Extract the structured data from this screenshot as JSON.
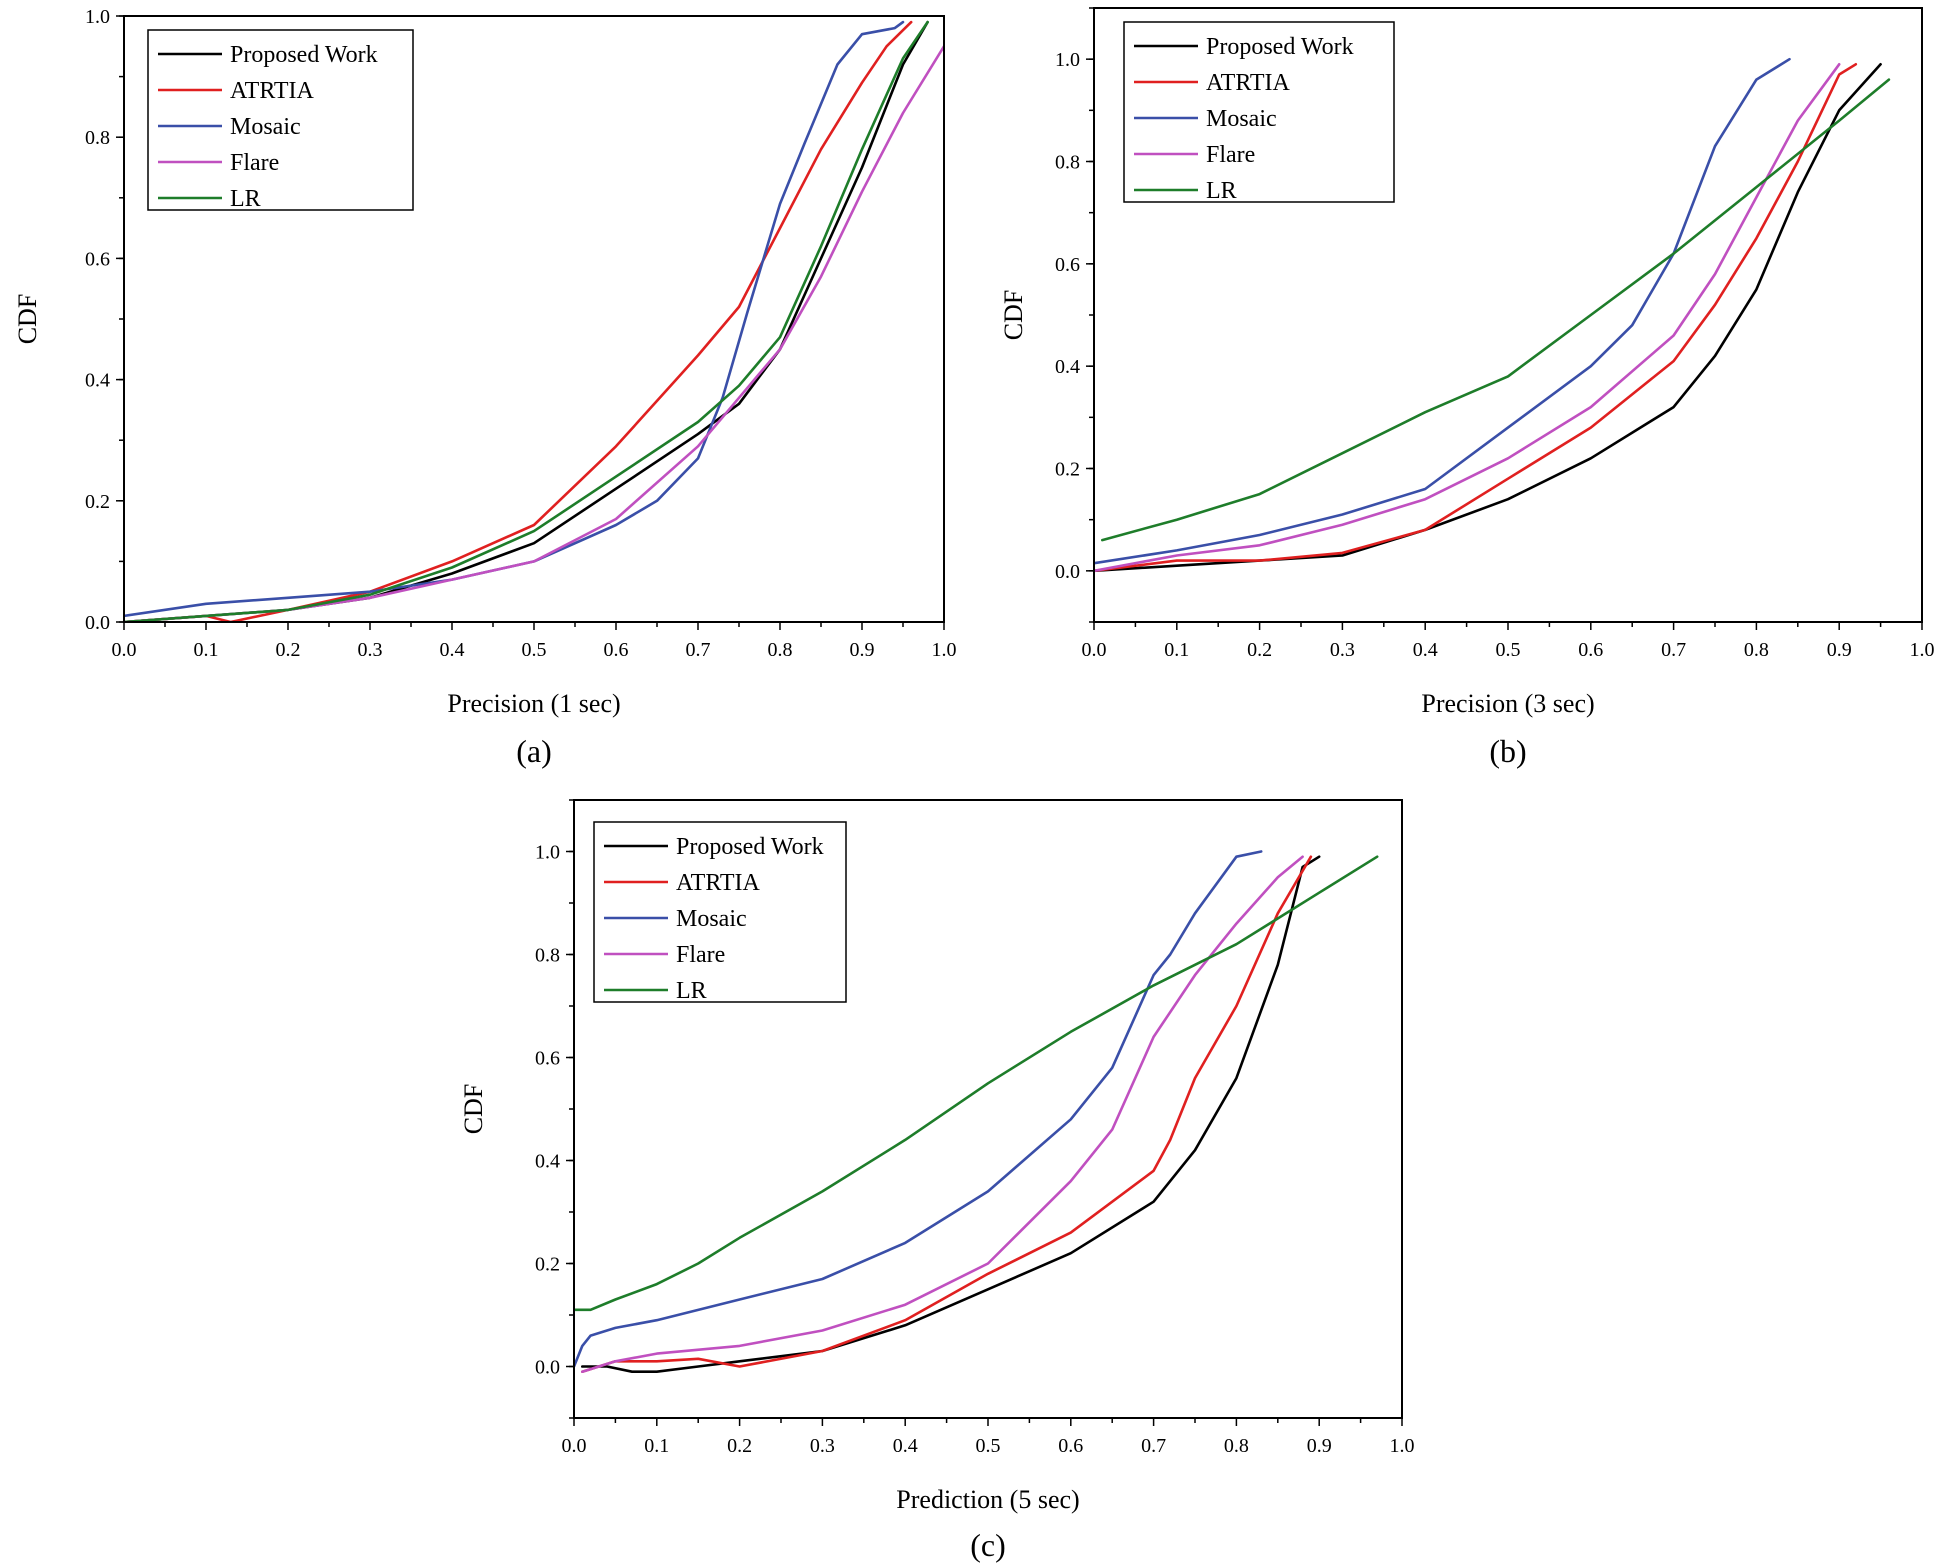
{
  "colors": {
    "Proposed Work": "#000000",
    "ATRTIA": "#e02020",
    "Mosaic": "#3a4fa8",
    "Flare": "#c050c0",
    "LR": "#1e7d2a"
  },
  "chart_data": [
    {
      "type": "line",
      "caption": "(a)",
      "xlabel": "Precision (1 sec)",
      "ylabel": "CDF",
      "xlim": [
        0.0,
        1.0
      ],
      "ylim": [
        0.0,
        1.0
      ],
      "xticks": [
        "0.0",
        "0.1",
        "0.2",
        "0.3",
        "0.4",
        "0.5",
        "0.6",
        "0.7",
        "0.8",
        "0.9",
        "1.0"
      ],
      "yticks": [
        "0.0",
        "0.2",
        "0.4",
        "0.6",
        "0.8",
        "1.0"
      ],
      "legend": [
        "Proposed Work",
        "ATRTIA",
        "Mosaic",
        "Flare",
        "LR"
      ],
      "series": [
        {
          "name": "Proposed Work",
          "x": [
            0.0,
            0.1,
            0.2,
            0.3,
            0.4,
            0.5,
            0.6,
            0.7,
            0.75,
            0.8,
            0.85,
            0.9,
            0.95,
            0.98
          ],
          "y": [
            0.0,
            0.01,
            0.02,
            0.04,
            0.08,
            0.13,
            0.22,
            0.31,
            0.36,
            0.45,
            0.6,
            0.75,
            0.92,
            0.99
          ]
        },
        {
          "name": "ATRTIA",
          "x": [
            0.0,
            0.1,
            0.13,
            0.2,
            0.3,
            0.4,
            0.5,
            0.6,
            0.7,
            0.75,
            0.8,
            0.85,
            0.9,
            0.93,
            0.96
          ],
          "y": [
            0.0,
            0.01,
            0.0,
            0.02,
            0.05,
            0.1,
            0.16,
            0.29,
            0.44,
            0.52,
            0.65,
            0.78,
            0.89,
            0.95,
            0.99
          ]
        },
        {
          "name": "Mosaic",
          "x": [
            0.0,
            0.1,
            0.2,
            0.3,
            0.4,
            0.5,
            0.6,
            0.65,
            0.7,
            0.73,
            0.76,
            0.8,
            0.83,
            0.87,
            0.9,
            0.94,
            0.95
          ],
          "y": [
            0.01,
            0.03,
            0.04,
            0.05,
            0.07,
            0.1,
            0.16,
            0.2,
            0.27,
            0.37,
            0.51,
            0.69,
            0.79,
            0.92,
            0.97,
            0.98,
            0.99
          ]
        },
        {
          "name": "Flare",
          "x": [
            0.0,
            0.1,
            0.2,
            0.3,
            0.4,
            0.5,
            0.6,
            0.7,
            0.75,
            0.8,
            0.85,
            0.9,
            0.95,
            1.0
          ],
          "y": [
            0.0,
            0.01,
            0.02,
            0.04,
            0.07,
            0.1,
            0.17,
            0.29,
            0.37,
            0.45,
            0.57,
            0.71,
            0.84,
            0.95
          ]
        },
        {
          "name": "LR",
          "x": [
            0.0,
            0.1,
            0.2,
            0.3,
            0.4,
            0.5,
            0.6,
            0.7,
            0.75,
            0.8,
            0.85,
            0.9,
            0.95,
            0.98
          ],
          "y": [
            0.0,
            0.01,
            0.02,
            0.045,
            0.09,
            0.15,
            0.24,
            0.33,
            0.39,
            0.47,
            0.62,
            0.78,
            0.93,
            0.99
          ]
        }
      ]
    },
    {
      "type": "line",
      "caption": "(b)",
      "xlabel": "Precision (3 sec)",
      "ylabel": "CDF",
      "xlim": [
        0.0,
        1.0
      ],
      "ylim": [
        -0.1,
        1.1
      ],
      "xticks": [
        "0.0",
        "0.1",
        "0.2",
        "0.3",
        "0.4",
        "0.5",
        "0.6",
        "0.7",
        "0.8",
        "0.9",
        "1.0"
      ],
      "yticks": [
        "0.0",
        "0.2",
        "0.4",
        "0.6",
        "0.8",
        "1.0"
      ],
      "legend": [
        "Proposed Work",
        "ATRTIA",
        "Mosaic",
        "Flare",
        "LR"
      ],
      "series": [
        {
          "name": "Proposed Work",
          "x": [
            0.0,
            0.1,
            0.2,
            0.3,
            0.4,
            0.5,
            0.6,
            0.7,
            0.75,
            0.8,
            0.85,
            0.9,
            0.95
          ],
          "y": [
            0.0,
            0.01,
            0.02,
            0.03,
            0.08,
            0.14,
            0.22,
            0.32,
            0.42,
            0.55,
            0.74,
            0.9,
            0.99
          ]
        },
        {
          "name": "ATRTIA",
          "x": [
            0.0,
            0.1,
            0.2,
            0.3,
            0.4,
            0.5,
            0.6,
            0.7,
            0.75,
            0.8,
            0.85,
            0.9,
            0.92
          ],
          "y": [
            0.0,
            0.02,
            0.02,
            0.035,
            0.08,
            0.18,
            0.28,
            0.41,
            0.52,
            0.65,
            0.8,
            0.97,
            0.99
          ]
        },
        {
          "name": "Mosaic",
          "x": [
            0.0,
            0.1,
            0.2,
            0.3,
            0.4,
            0.5,
            0.6,
            0.65,
            0.7,
            0.75,
            0.8,
            0.84
          ],
          "y": [
            0.015,
            0.04,
            0.07,
            0.11,
            0.16,
            0.28,
            0.4,
            0.48,
            0.62,
            0.83,
            0.96,
            1.0
          ]
        },
        {
          "name": "Flare",
          "x": [
            0.0,
            0.1,
            0.2,
            0.3,
            0.4,
            0.5,
            0.6,
            0.7,
            0.75,
            0.8,
            0.85,
            0.9
          ],
          "y": [
            0.0,
            0.03,
            0.05,
            0.09,
            0.14,
            0.22,
            0.32,
            0.46,
            0.58,
            0.73,
            0.88,
            0.99
          ]
        },
        {
          "name": "LR",
          "x": [
            0.01,
            0.1,
            0.2,
            0.3,
            0.4,
            0.5,
            0.6,
            0.7,
            0.8,
            0.9,
            0.96
          ],
          "y": [
            0.06,
            0.1,
            0.15,
            0.23,
            0.31,
            0.38,
            0.5,
            0.62,
            0.75,
            0.88,
            0.96
          ]
        }
      ]
    },
    {
      "type": "line",
      "caption": "(c)",
      "xlabel": "Prediction (5 sec)",
      "ylabel": "CDF",
      "xlim": [
        0.0,
        1.0
      ],
      "ylim": [
        -0.1,
        1.1
      ],
      "xticks": [
        "0.0",
        "0.1",
        "0.2",
        "0.3",
        "0.4",
        "0.5",
        "0.6",
        "0.7",
        "0.8",
        "0.9",
        "1.0"
      ],
      "yticks": [
        "0.0",
        "0.2",
        "0.4",
        "0.6",
        "0.8",
        "1.0"
      ],
      "legend": [
        "Proposed Work",
        "ATRTIA",
        "Mosaic",
        "Flare",
        "LR"
      ],
      "series": [
        {
          "name": "Proposed Work",
          "x": [
            0.01,
            0.04,
            0.07,
            0.1,
            0.15,
            0.2,
            0.3,
            0.4,
            0.5,
            0.6,
            0.7,
            0.75,
            0.8,
            0.85,
            0.88,
            0.9
          ],
          "y": [
            0.0,
            0.0,
            -0.01,
            -0.01,
            0.0,
            0.01,
            0.03,
            0.08,
            0.15,
            0.22,
            0.32,
            0.42,
            0.56,
            0.78,
            0.97,
            0.99
          ]
        },
        {
          "name": "ATRTIA",
          "x": [
            0.01,
            0.05,
            0.1,
            0.15,
            0.2,
            0.3,
            0.4,
            0.5,
            0.6,
            0.7,
            0.72,
            0.75,
            0.8,
            0.85,
            0.89
          ],
          "y": [
            -0.01,
            0.01,
            0.01,
            0.015,
            0.0,
            0.03,
            0.09,
            0.18,
            0.26,
            0.38,
            0.44,
            0.56,
            0.7,
            0.88,
            0.99
          ]
        },
        {
          "name": "Mosaic",
          "x": [
            0.0,
            0.01,
            0.02,
            0.05,
            0.1,
            0.2,
            0.3,
            0.4,
            0.5,
            0.6,
            0.65,
            0.7,
            0.72,
            0.75,
            0.8,
            0.83
          ],
          "y": [
            0.0,
            0.04,
            0.06,
            0.075,
            0.09,
            0.13,
            0.17,
            0.24,
            0.34,
            0.48,
            0.58,
            0.76,
            0.8,
            0.88,
            0.99,
            1.0
          ]
        },
        {
          "name": "Flare",
          "x": [
            0.01,
            0.05,
            0.1,
            0.2,
            0.3,
            0.4,
            0.5,
            0.6,
            0.65,
            0.7,
            0.75,
            0.8,
            0.85,
            0.88
          ],
          "y": [
            -0.01,
            0.01,
            0.025,
            0.04,
            0.07,
            0.12,
            0.2,
            0.36,
            0.46,
            0.64,
            0.76,
            0.86,
            0.95,
            0.99
          ]
        },
        {
          "name": "LR",
          "x": [
            0.0,
            0.02,
            0.05,
            0.1,
            0.15,
            0.2,
            0.3,
            0.4,
            0.5,
            0.6,
            0.7,
            0.8,
            0.9,
            0.97
          ],
          "y": [
            0.11,
            0.11,
            0.13,
            0.16,
            0.2,
            0.25,
            0.34,
            0.44,
            0.55,
            0.65,
            0.74,
            0.82,
            0.92,
            0.99
          ]
        }
      ]
    }
  ]
}
